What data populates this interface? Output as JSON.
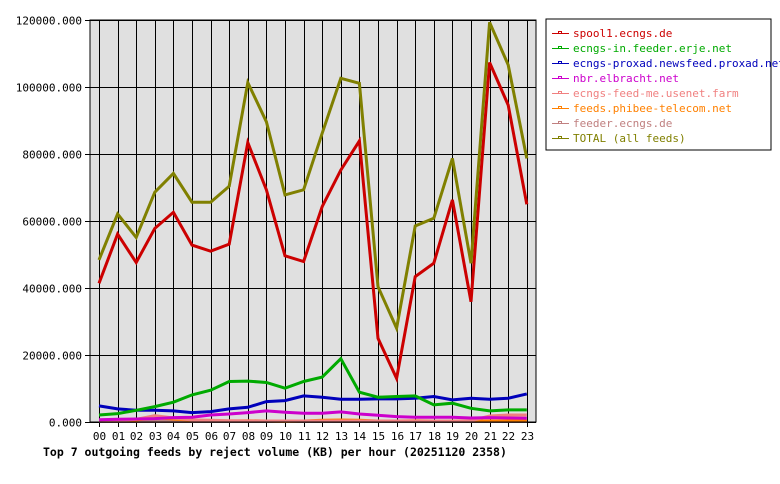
{
  "chart_data": {
    "type": "line",
    "title": "Top 7 outgoing feeds by reject volume (KB) per hour (20251120 2358)",
    "xlabel": "",
    "ylabel": "",
    "ylim": [
      0,
      120000
    ],
    "yticks": [
      "0.000",
      "20000.000",
      "40000.000",
      "60000.000",
      "80000.000",
      "100000.000",
      "120000.000"
    ],
    "ytick_values": [
      0,
      20000,
      40000,
      60000,
      80000,
      100000,
      120000
    ],
    "grid": true,
    "legend_position": "right",
    "plot_background": "#e0e0e0",
    "categories": [
      "00",
      "01",
      "02",
      "03",
      "04",
      "05",
      "06",
      "07",
      "08",
      "09",
      "10",
      "11",
      "12",
      "13",
      "14",
      "15",
      "16",
      "17",
      "18",
      "19",
      "20",
      "21",
      "22",
      "23"
    ],
    "series": [
      {
        "name": "spool1.ecngs.de",
        "color": "#cc0000",
        "values": [
          41400,
          56100,
          47600,
          57800,
          62600,
          52800,
          51000,
          53100,
          83400,
          69300,
          49600,
          47900,
          64300,
          75200,
          83900,
          25000,
          13000,
          43400,
          47400,
          66300,
          35900,
          107300,
          94600,
          65000
        ]
      },
      {
        "name": "ecngs-in.feeder.erje.net",
        "color": "#00aa00",
        "values": [
          2100,
          2500,
          3500,
          4600,
          5900,
          8100,
          9500,
          12100,
          12200,
          11800,
          10100,
          12100,
          13400,
          18900,
          8900,
          7400,
          7600,
          7800,
          5100,
          5600,
          4100,
          3300,
          3600,
          3600
        ]
      },
      {
        "name": "ecngs-proxad.newsfeed.proxad.net",
        "color": "#0000bb",
        "values": [
          4800,
          3900,
          3500,
          3500,
          3300,
          2800,
          3100,
          3900,
          4400,
          6100,
          6400,
          7800,
          7400,
          6800,
          6800,
          6900,
          6900,
          7100,
          7600,
          6600,
          7100,
          6800,
          7100,
          8400
        ]
      },
      {
        "name": "nbr.elbracht.net",
        "color": "#cc00cc",
        "values": [
          700,
          800,
          900,
          1000,
          1300,
          1400,
          2100,
          2400,
          2800,
          3300,
          2900,
          2600,
          2600,
          3000,
          2400,
          2000,
          1600,
          1400,
          1400,
          1400,
          1200,
          1300,
          1200,
          1100
        ]
      },
      {
        "name": "ecngs-feed-me.usenet.farm",
        "color": "#f08080",
        "values": [
          300,
          400,
          800,
          1900,
          1200,
          600,
          500,
          400,
          300,
          300,
          300,
          300,
          300,
          300,
          300,
          300,
          300,
          300,
          300,
          300,
          400,
          1800,
          2100,
          2100
        ]
      },
      {
        "name": "feeds.phibee-telecom.net",
        "color": "#ff8000",
        "values": [
          600,
          500,
          600,
          1300,
          900,
          500,
          400,
          300,
          400,
          300,
          200,
          300,
          500,
          600,
          500,
          300,
          300,
          400,
          300,
          300,
          300,
          300,
          300,
          300
        ]
      },
      {
        "name": "feeder.ecngs.de",
        "color": "#c08080",
        "values": [
          200,
          200,
          200,
          200,
          200,
          200,
          200,
          200,
          200,
          200,
          200,
          200,
          200,
          200,
          200,
          200,
          200,
          200,
          200,
          200,
          200,
          200,
          200,
          200
        ]
      },
      {
        "name": "TOTAL (all feeds)",
        "color": "#808000",
        "values": [
          48400,
          62100,
          55100,
          68600,
          74200,
          65600,
          65600,
          70400,
          101300,
          89600,
          67800,
          69300,
          86200,
          102600,
          101100,
          40400,
          28000,
          58500,
          60800,
          78700,
          47400,
          119300,
          106600,
          78700
        ]
      }
    ]
  }
}
